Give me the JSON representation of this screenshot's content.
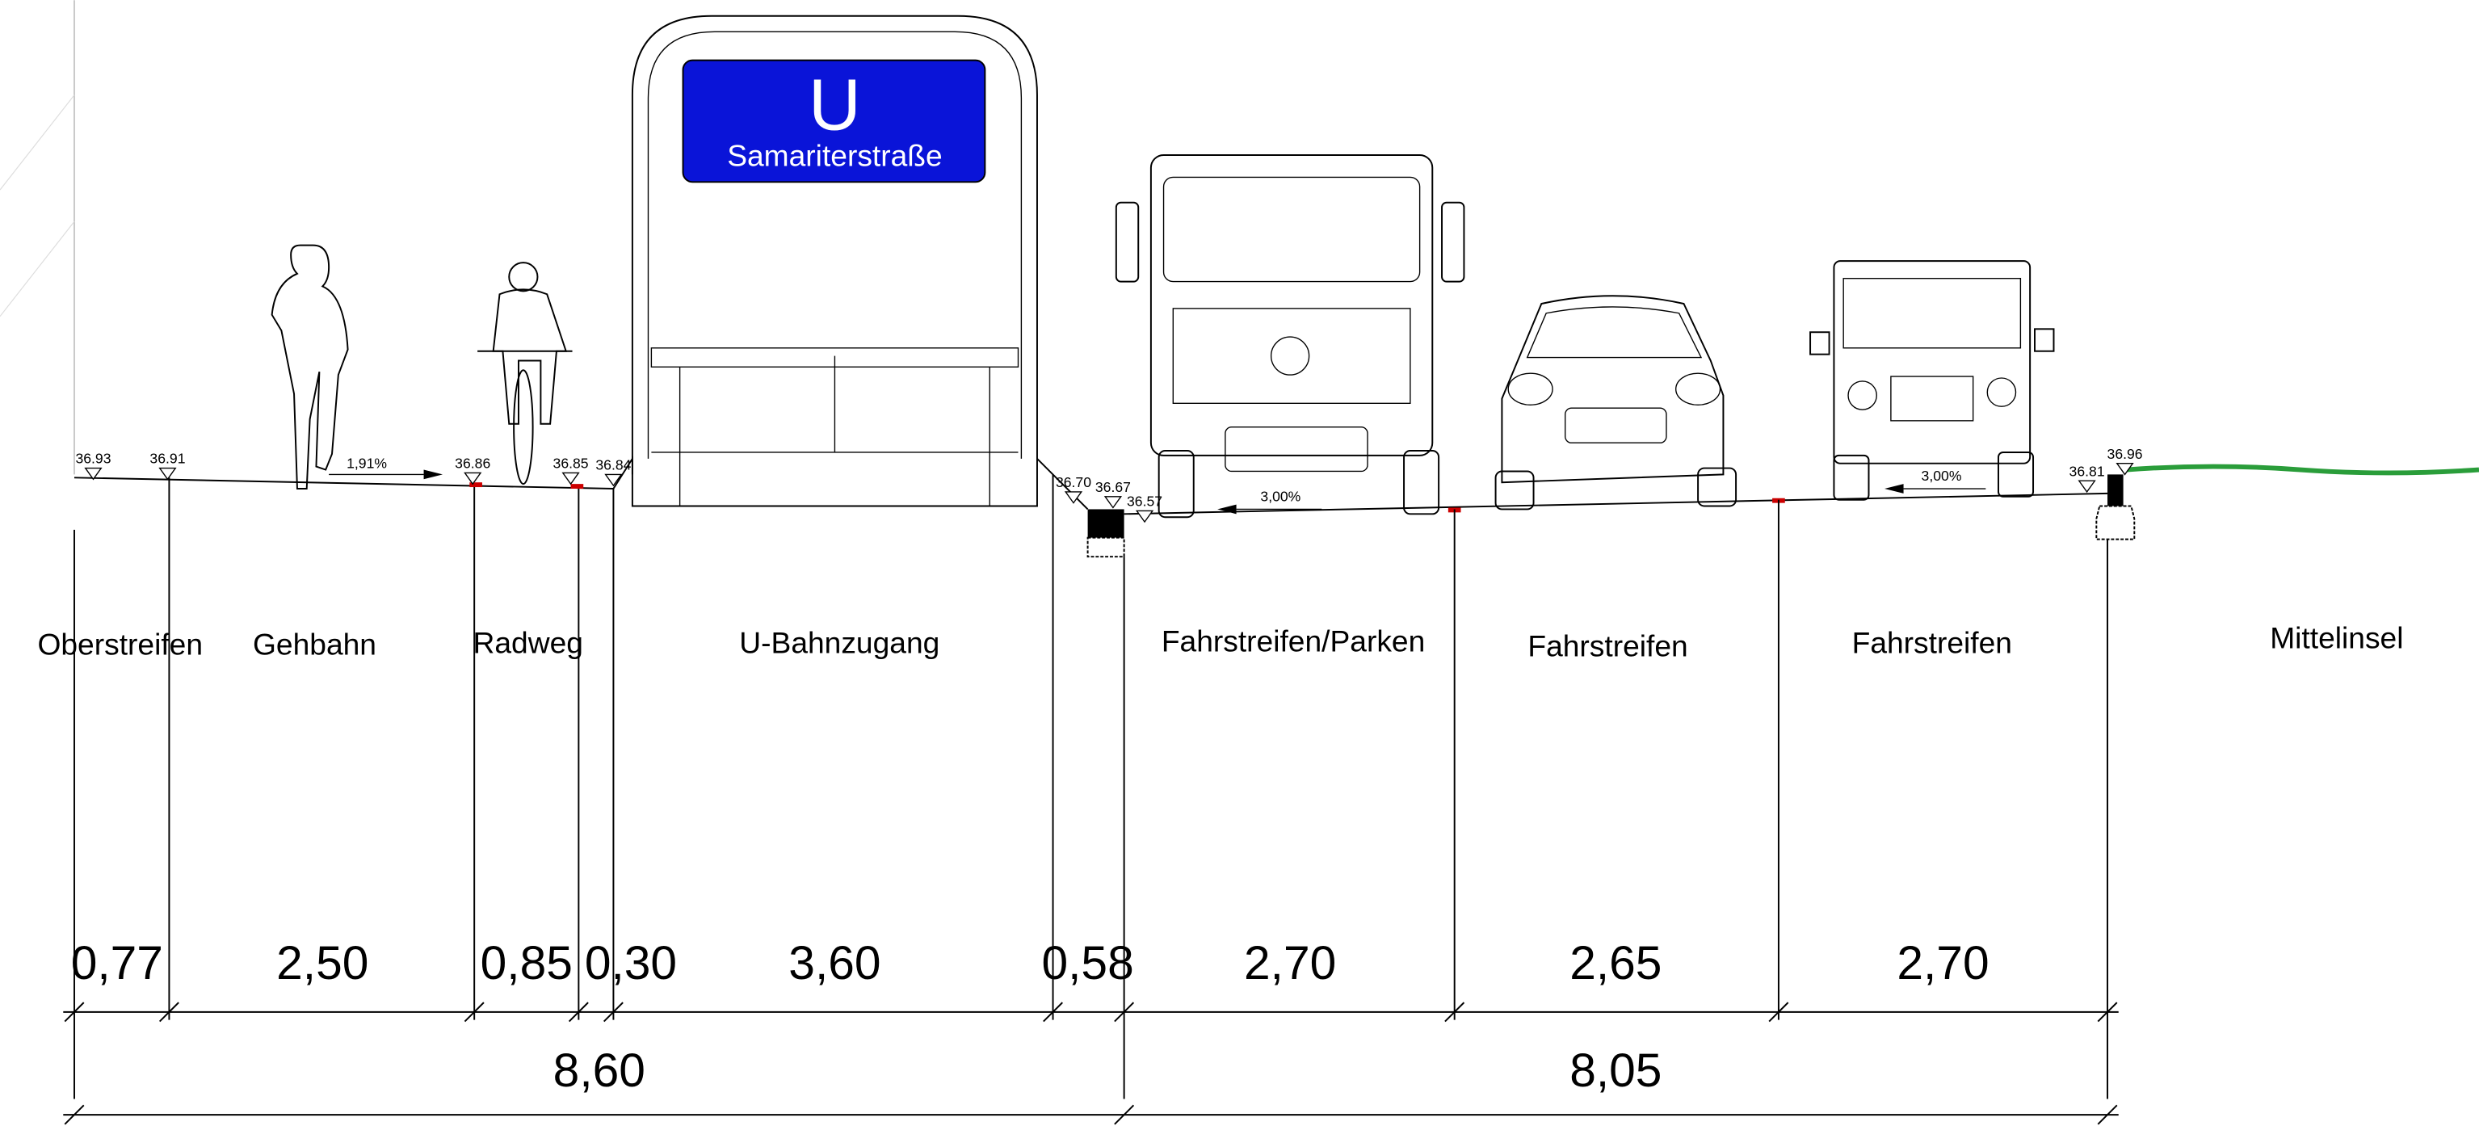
{
  "sign": {
    "letter": "U",
    "station": "Samariterstraße"
  },
  "elevations": [
    "36.93",
    "36.91",
    "36.86",
    "36.85",
    "36.84",
    "36.70",
    "36.67",
    "36.57",
    "36.81",
    "36.96"
  ],
  "slopes": [
    "1,91%",
    "3,00%",
    "3,00%"
  ],
  "section_names": [
    "Oberstreifen",
    "Gehbahn",
    "Radweg",
    "U-Bahnzugang",
    "Fahrstreifen/Parken",
    "Fahrstreifen",
    "Fahrstreifen",
    "Mittelinsel"
  ],
  "widths": [
    "0,77",
    "2,50",
    "0,85",
    "0,30",
    "3,60",
    "0,58",
    "2,70",
    "2,65",
    "2,70"
  ],
  "totals": [
    "8,60",
    "8,05"
  ]
}
